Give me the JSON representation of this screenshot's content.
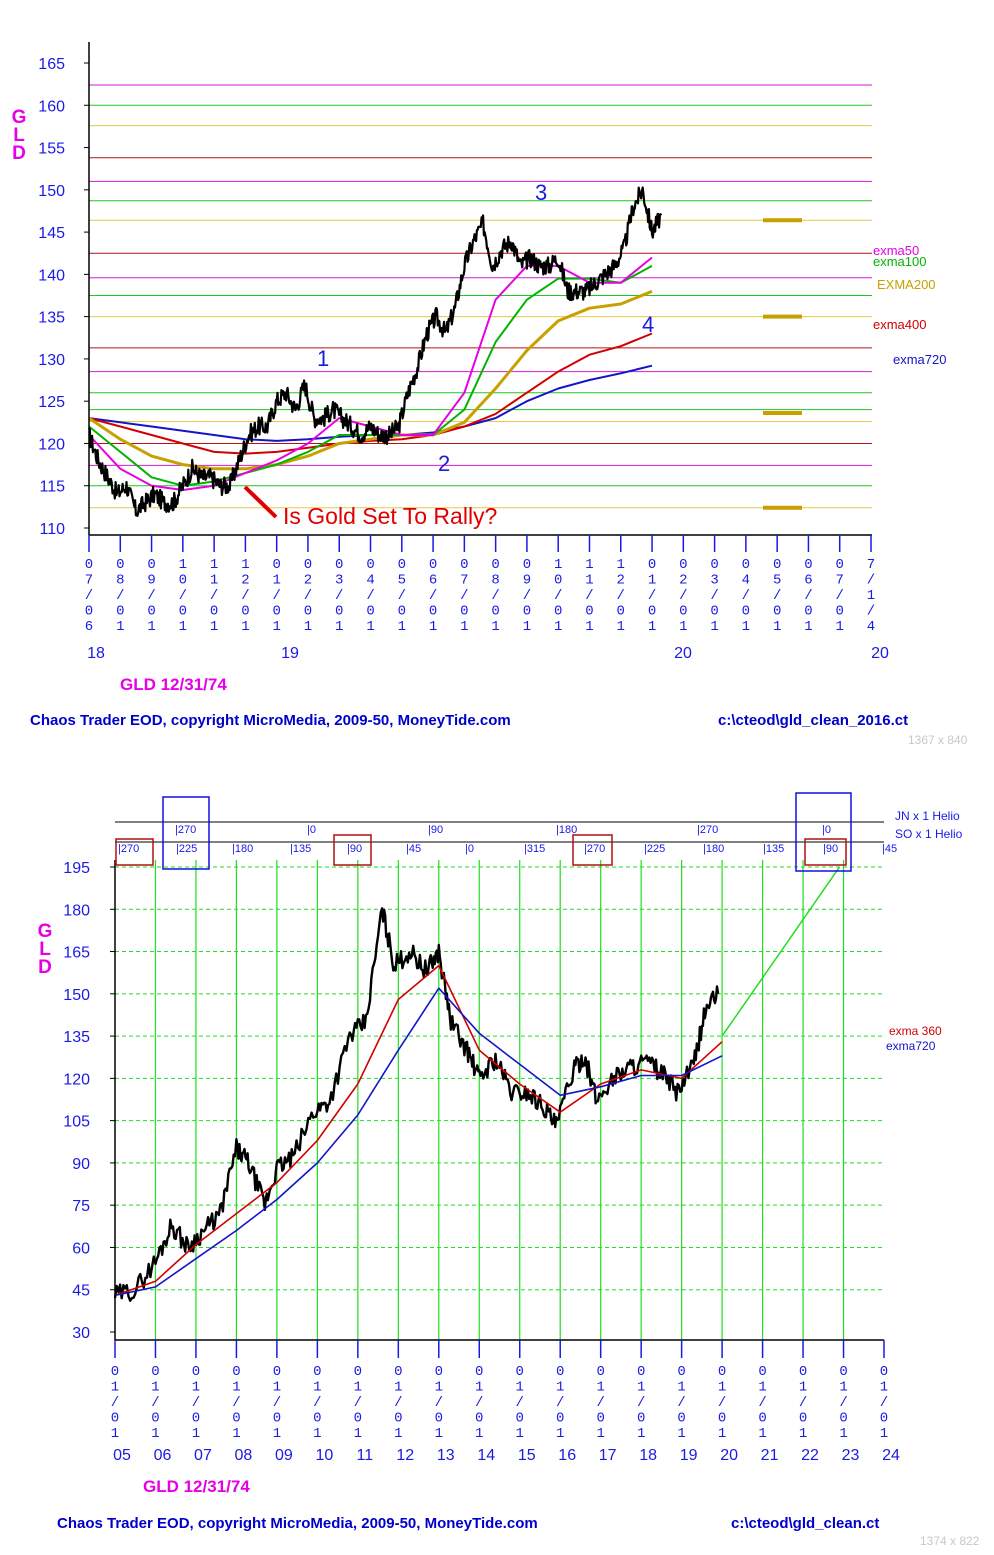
{
  "charts": {
    "top": {
      "ylabel": "GLD",
      "label": "GLD 12/31/74",
      "footer_left": "Chaos Trader EOD, copyright MicroMedia, 2009-50, MoneyTide.com",
      "footer_right": "c:\\cteod\\gld_clean_2016.ct",
      "dims": "1367 x 840",
      "annotation": "Is Gold Set To Rally?",
      "wave_labels": [
        "1",
        "2",
        "3",
        "4"
      ],
      "ma_labels": [
        "exma50",
        "exma100",
        "EXMA200",
        "exma400",
        "exma720"
      ]
    },
    "bottom": {
      "ylabel": "GLD",
      "label": "GLD 12/31/74",
      "footer_left": "Chaos Trader EOD, copyright MicroMedia, 2009-50, MoneyTide.com",
      "footer_right": "c:\\cteod\\gld_clean.ct",
      "dims": "1374 x 822",
      "helio_labels": [
        "JN x 1 Helio",
        "SO x 1 Helio"
      ],
      "ma_labels": [
        "exma 360",
        "exma720"
      ]
    }
  },
  "colors": {
    "price": "#000000",
    "exma50": "#e600e6",
    "exma100": "#00b400",
    "exma200": "#c8a000",
    "exma400": "#d20000",
    "exma720": "#1414c8",
    "axis_text": "#1a1ae6",
    "label_magenta": "#e600e6",
    "annotation_red": "#e00000",
    "grid_green": "#22dd22",
    "box_red": "#b01010",
    "box_blue": "#1010e0"
  },
  "chart_data": [
    {
      "type": "line",
      "ylim": [
        110,
        165
      ],
      "yticks": [
        110,
        115,
        120,
        125,
        130,
        135,
        140,
        145,
        150,
        155,
        160,
        165
      ],
      "xticks": [
        "07/06",
        "08/01",
        "09/01",
        "10/01",
        "11/01",
        "12/01",
        "01/01",
        "02/01",
        "03/01",
        "04/01",
        "05/01",
        "06/01",
        "07/01",
        "08/01",
        "09/01",
        "10/01",
        "11/01",
        "12/01",
        "01/01",
        "02/01",
        "03/01",
        "04/01",
        "05/01",
        "06/01",
        "07/01",
        "7/1/4"
      ],
      "year_labels": [
        "18",
        "19",
        "20",
        "20"
      ],
      "price_levels": [
        112.4,
        115.0,
        117.4,
        120.0,
        122.6,
        124.0,
        126.0,
        128.5,
        131.3,
        135.0,
        137.5,
        139.6,
        142.5,
        146.4,
        148.7,
        151.0,
        153.8,
        157.6,
        160.0,
        162.4
      ],
      "level_colors": [
        "#e6c84a",
        "#22c822",
        "#d21ed2",
        "#b41414",
        "#e6c84a",
        "#22c822",
        "#22c822",
        "#d21ed2",
        "#b41414",
        "#e6c84a",
        "#22c822",
        "#d21ed2",
        "#b41414",
        "#e6c84a",
        "#22c822",
        "#d21ed2",
        "#b41414",
        "#e6c84a",
        "#22c822",
        "#d21ed2"
      ],
      "projected_levels": [
        146.4,
        135.0,
        123.6,
        112.4
      ],
      "series": [
        {
          "name": "GLD",
          "x": [
            0,
            0.3,
            0.6,
            0.9,
            1.2,
            1.5,
            1.8,
            2.1,
            2.4,
            2.7,
            3.0,
            3.3,
            3.6,
            3.9,
            4.2,
            4.5,
            4.8,
            5.1,
            5.4,
            5.7,
            6.0,
            6.3,
            6.6,
            6.9,
            7.2,
            7.5,
            7.8,
            8.1,
            8.4,
            8.7,
            9.0,
            9.3,
            9.6,
            9.9,
            10.2,
            10.5,
            10.8,
            11.1,
            11.4,
            11.7,
            12.0,
            12.3,
            12.6,
            12.9,
            13.2,
            13.5,
            13.8,
            14.1,
            14.4,
            14.7,
            15.0,
            15.3,
            15.6,
            15.9,
            16.2,
            16.5,
            16.8,
            17.1,
            17.4,
            17.7,
            18.0,
            18.3
          ],
          "values": [
            121,
            118,
            116,
            114,
            115,
            112,
            113,
            114,
            113,
            113,
            115,
            117,
            116,
            116,
            115,
            115,
            118,
            121,
            122,
            122,
            125,
            126,
            124,
            127,
            123,
            123,
            124,
            123,
            122,
            121,
            122,
            121,
            121,
            122,
            126,
            129,
            133,
            135,
            133,
            136,
            141,
            144,
            146,
            141,
            143,
            144,
            141,
            142,
            141,
            141,
            142,
            138,
            138,
            138,
            139,
            140,
            141,
            143,
            148,
            150,
            145,
            147
          ]
        },
        {
          "name": "exma50",
          "x": [
            0,
            1,
            2,
            3,
            4,
            5,
            6,
            7,
            8,
            9,
            10,
            11,
            12,
            13,
            14,
            15,
            16,
            17,
            18
          ],
          "values": [
            121,
            117,
            115,
            114.5,
            115,
            116.5,
            118,
            120,
            123,
            122,
            121,
            121,
            126,
            137,
            141,
            141,
            139,
            139,
            142
          ]
        },
        {
          "name": "exma100",
          "x": [
            0,
            1,
            2,
            3,
            4,
            5,
            6,
            7,
            8,
            9,
            10,
            11,
            12,
            13,
            14,
            15,
            16,
            17,
            18
          ],
          "values": [
            122,
            119,
            116,
            115,
            115.5,
            116.5,
            117.5,
            119,
            121,
            121,
            121,
            121,
            124,
            132,
            137,
            139.5,
            139.5,
            139,
            141
          ]
        },
        {
          "name": "EXMA200",
          "x": [
            0,
            1,
            2,
            3,
            4,
            5,
            6,
            7,
            8,
            9,
            10,
            11,
            12,
            13,
            14,
            15,
            16,
            17,
            18
          ],
          "values": [
            123,
            120.5,
            118.5,
            117.5,
            117,
            117,
            117.5,
            118.5,
            120,
            120.5,
            121,
            121,
            122.5,
            126.5,
            131,
            134.5,
            136,
            136.5,
            138
          ]
        },
        {
          "name": "exma400",
          "x": [
            0,
            1,
            2,
            3,
            4,
            5,
            6,
            7,
            8,
            9,
            10,
            11,
            12,
            13,
            14,
            15,
            16,
            17,
            18
          ],
          "values": [
            123,
            122,
            121,
            120,
            119,
            118.8,
            119,
            119.5,
            120,
            120.3,
            120.5,
            121,
            122,
            123.5,
            126,
            128.5,
            130.5,
            131.5,
            133
          ]
        },
        {
          "name": "exma720",
          "x": [
            0,
            1,
            2,
            3,
            4,
            5,
            6,
            7,
            8,
            9,
            10,
            11,
            12,
            13,
            14,
            15,
            16,
            17,
            18
          ],
          "values": [
            123,
            122.5,
            122,
            121.5,
            121,
            120.5,
            120.3,
            120.5,
            120.8,
            121,
            121,
            121.3,
            122,
            123,
            125,
            126.5,
            127.5,
            128.3,
            129.2
          ]
        }
      ]
    },
    {
      "type": "line",
      "ylim": [
        30,
        195
      ],
      "yticks": [
        30,
        45,
        60,
        75,
        90,
        105,
        120,
        135,
        150,
        165,
        180,
        195
      ],
      "xticks": [
        "01/01",
        "01/01",
        "01/01",
        "01/01",
        "01/01",
        "01/01",
        "01/01",
        "01/01",
        "01/01",
        "01/01",
        "01/01",
        "01/01",
        "01/01",
        "01/01",
        "01/01",
        "01/01",
        "01/01",
        "01/01",
        "01/01",
        "01/01"
      ],
      "year_labels": [
        "05",
        "06",
        "07",
        "08",
        "09",
        "10",
        "11",
        "12",
        "13",
        "14",
        "15",
        "16",
        "17",
        "18",
        "19",
        "20",
        "21",
        "22",
        "23",
        "24"
      ],
      "jn_helio": [
        "270",
        "0",
        "90",
        "180",
        "270",
        "0"
      ],
      "so_helio": [
        "270",
        "225",
        "180",
        "135",
        "90",
        "45",
        "0",
        "315",
        "270",
        "225",
        "180",
        "135",
        "90",
        "45"
      ],
      "series": [
        {
          "name": "GLD",
          "x": [
            2005,
            2005.5,
            2006,
            2006.4,
            2006.8,
            2007.2,
            2007.6,
            2008.0,
            2008.3,
            2008.7,
            2009.0,
            2009.4,
            2009.9,
            2010.3,
            2010.8,
            2011.2,
            2011.6,
            2011.9,
            2012.3,
            2012.7,
            2013.0,
            2013.3,
            2013.7,
            2014.0,
            2014.4,
            2014.8,
            2015.2,
            2015.6,
            2015.9,
            2016.3,
            2016.6,
            2016.9,
            2017.3,
            2017.7,
            2018.1,
            2018.5,
            2018.9,
            2019.3,
            2019.6,
            2019.9
          ],
          "values": [
            43,
            45,
            55,
            68,
            60,
            66,
            72,
            95,
            90,
            75,
            88,
            92,
            108,
            112,
            135,
            140,
            180,
            160,
            165,
            158,
            165,
            140,
            130,
            120,
            127,
            115,
            115,
            110,
            103,
            122,
            128,
            112,
            120,
            124,
            126,
            122,
            115,
            125,
            145,
            150
          ]
        },
        {
          "name": "exma 360",
          "x": [
            2005,
            2006,
            2007,
            2008,
            2009,
            2010,
            2011,
            2012,
            2013,
            2014,
            2015,
            2016,
            2017,
            2018,
            2019,
            2020
          ],
          "values": [
            43,
            48,
            61,
            72,
            83,
            98,
            118,
            148,
            160,
            130,
            118,
            108,
            118,
            123,
            120,
            133
          ]
        },
        {
          "name": "exma720",
          "x": [
            2005,
            2006,
            2007,
            2008,
            2009,
            2010,
            2011,
            2012,
            2013,
            2014,
            2015,
            2016,
            2017,
            2018,
            2019,
            2020
          ],
          "values": [
            43,
            46,
            56,
            66,
            77,
            90,
            107,
            130,
            152,
            136,
            125,
            114,
            117,
            121,
            121,
            128
          ]
        },
        {
          "name": "projection",
          "x": [
            2020,
            2022.9
          ],
          "values": [
            135,
            195
          ]
        }
      ]
    }
  ]
}
